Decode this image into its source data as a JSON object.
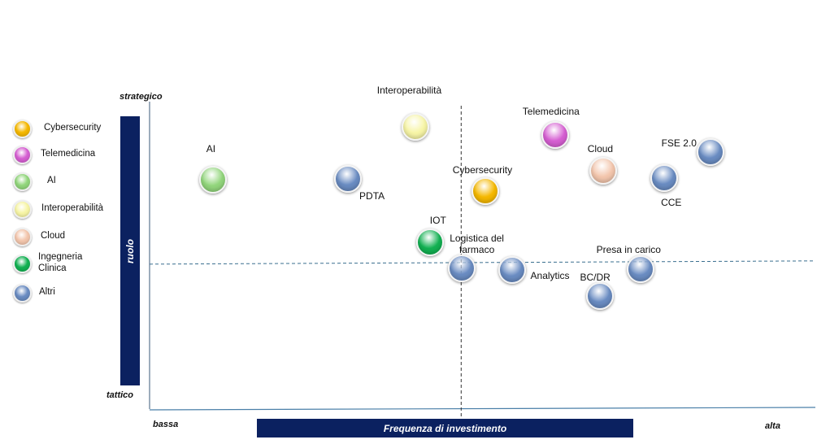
{
  "chart_data": {
    "type": "scatter",
    "title": "",
    "xlabel": "Frequenza di investimento",
    "ylabel": "ruolo",
    "x_low_label": "bassa",
    "x_high_label": "alta",
    "y_high_label": "strategico",
    "y_low_label": "tattico",
    "xlim": [
      0,
      100
    ],
    "ylim": [
      0,
      100
    ],
    "x_divider": 46.8,
    "y_divider": 47.4,
    "grid": false,
    "legend_position": "left",
    "legend": [
      {
        "name": "Cybersecurity",
        "color": "#f5b800"
      },
      {
        "name": "Telemedicina",
        "color": "#d65fd2"
      },
      {
        "name": "AI",
        "color": "#92d67c"
      },
      {
        "name": "Interoperabilità",
        "color": "#f7f5a6"
      },
      {
        "name": "Cloud",
        "color": "#f3c6ad"
      },
      {
        "name": "Ingegneria Clinica",
        "color": "#12b152"
      },
      {
        "name": "Altri",
        "color": "#6a8cc2"
      }
    ],
    "points": [
      {
        "label": "AI",
        "category": "AI",
        "x": 9.5,
        "y": 74.6
      },
      {
        "label": "PDTA",
        "category": "Altri",
        "x": 29.8,
        "y": 74.9
      },
      {
        "label": "Interoperabilità",
        "category": "Interoperabilità",
        "x": 39.9,
        "y": 91.8
      },
      {
        "label": "Telemedicina",
        "category": "Telemedicina",
        "x": 60.9,
        "y": 89.2
      },
      {
        "label": "Cloud",
        "category": "Cloud",
        "x": 68.1,
        "y": 77.5
      },
      {
        "label": "FSE 2.0",
        "category": "Altri",
        "x": 84.2,
        "y": 83.6
      },
      {
        "label": "CCE",
        "category": "Altri",
        "x": 77.3,
        "y": 75.1
      },
      {
        "label": "Cybersecurity",
        "category": "Cybersecurity",
        "x": 50.4,
        "y": 70.9
      },
      {
        "label": "IOT",
        "category": "Ingegneria Clinica",
        "x": 42.1,
        "y": 54.2
      },
      {
        "label": "Logistica del farmaco",
        "category": "Altri",
        "x": 46.9,
        "y": 45.8
      },
      {
        "label": "Analytics",
        "category": "Altri",
        "x": 54.4,
        "y": 45.2
      },
      {
        "label": "BC/DR",
        "category": "Altri",
        "x": 67.7,
        "y": 36.8
      },
      {
        "label": "Presa in carico",
        "category": "Altri",
        "x": 73.7,
        "y": 45.5
      }
    ]
  }
}
